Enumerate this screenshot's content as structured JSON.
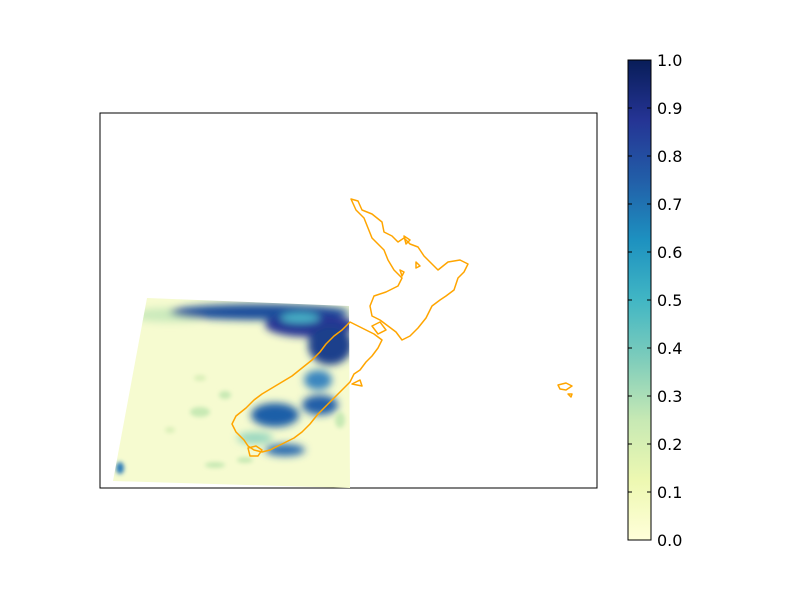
{
  "colorbar": {
    "colormap": "YlGnBu",
    "ticks": [
      "0.0",
      "0.1",
      "0.2",
      "0.3",
      "0.4",
      "0.5",
      "0.6",
      "0.7",
      "0.8",
      "0.9",
      "1.0"
    ],
    "range": [
      0.0,
      1.0
    ]
  },
  "colors": {
    "coastline": "#ffa500",
    "frame": "#000000",
    "low": "#ffffd9",
    "high": "#081d58"
  }
}
